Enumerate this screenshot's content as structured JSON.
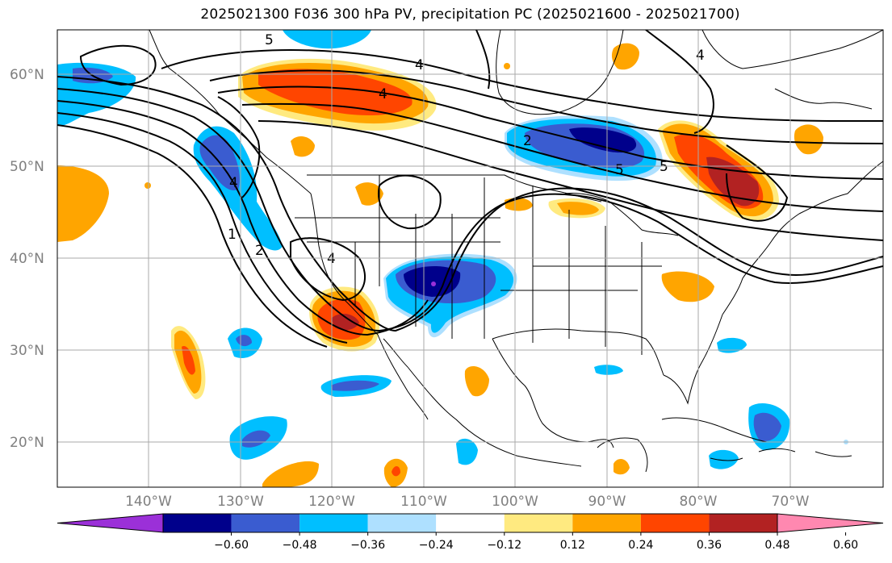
{
  "title": "2025021300 F036 300 hPa PV, precipitation PC (2025021600 - 2025021700)",
  "lat_labels": [
    "60°N",
    "50°N",
    "40°N",
    "30°N",
    "20°N"
  ],
  "lon_labels": [
    "140°W",
    "130°W",
    "120°W",
    "110°W",
    "100°W",
    "90°W",
    "80°W",
    "70°W"
  ],
  "map": {
    "lon_range": [
      -150,
      -60
    ],
    "lat_range": [
      15,
      65
    ],
    "grid": true,
    "pv_contour_labels": [
      "5",
      "4",
      "4",
      "4",
      "4",
      "1",
      "2",
      "2",
      "4",
      "5",
      "5"
    ]
  },
  "colorbar": {
    "ticks": [
      "−0.60",
      "−0.48",
      "−0.36",
      "−0.24",
      "−0.12",
      "0.12",
      "0.24",
      "0.36",
      "0.48",
      "0.60"
    ],
    "colors": [
      "#9b30d8",
      "#00008b",
      "#3a5cd0",
      "#00bfff",
      "#aee0ff",
      "#ffffff",
      "#ffea80",
      "#ffa500",
      "#ff4500",
      "#b22222",
      "#ff88b0"
    ]
  }
}
